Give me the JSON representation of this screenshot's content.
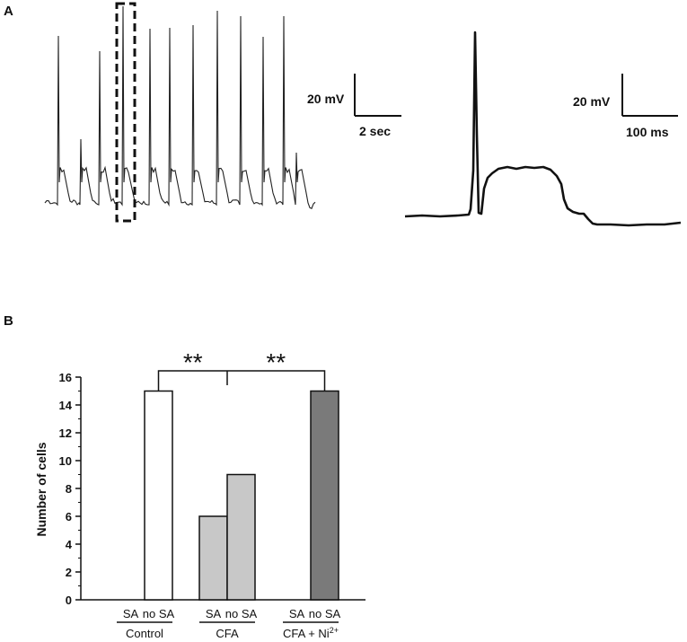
{
  "panels": {
    "a_letter": "A",
    "b_letter": "B"
  },
  "traces": {
    "left_scale": {
      "voltage": "20 mV",
      "time": "2 sec"
    },
    "right_scale": {
      "voltage": "20 mV",
      "time": "100 ms"
    },
    "trace_color": "#222222"
  },
  "chart_data": {
    "type": "bar",
    "ylabel": "Number of cells",
    "ylim": [
      0,
      16
    ],
    "yticks": [
      "0",
      "2",
      "4",
      "6",
      "8",
      "10",
      "12",
      "14",
      "16"
    ],
    "groups": [
      {
        "name": "Control",
        "bars": [
          {
            "label": "SA",
            "value": 0,
            "color": "#ffffff"
          },
          {
            "label": "no SA",
            "value": 15,
            "color": "#ffffff"
          }
        ]
      },
      {
        "name": "CFA",
        "bars": [
          {
            "label": "SA",
            "value": 6,
            "color": "#c8c8c8"
          },
          {
            "label": "no SA",
            "value": 9,
            "color": "#c8c8c8"
          }
        ]
      },
      {
        "name": "CFA + Ni",
        "superscript": "2+",
        "bars": [
          {
            "label": "SA",
            "value": 0,
            "color": "#7a7a7a"
          },
          {
            "label": "no SA",
            "value": 15,
            "color": "#7a7a7a"
          }
        ]
      }
    ],
    "significance": [
      {
        "from_group": 0,
        "to_group": 1,
        "label": "**"
      },
      {
        "from_group": 1,
        "to_group": 2,
        "label": "**"
      }
    ]
  }
}
